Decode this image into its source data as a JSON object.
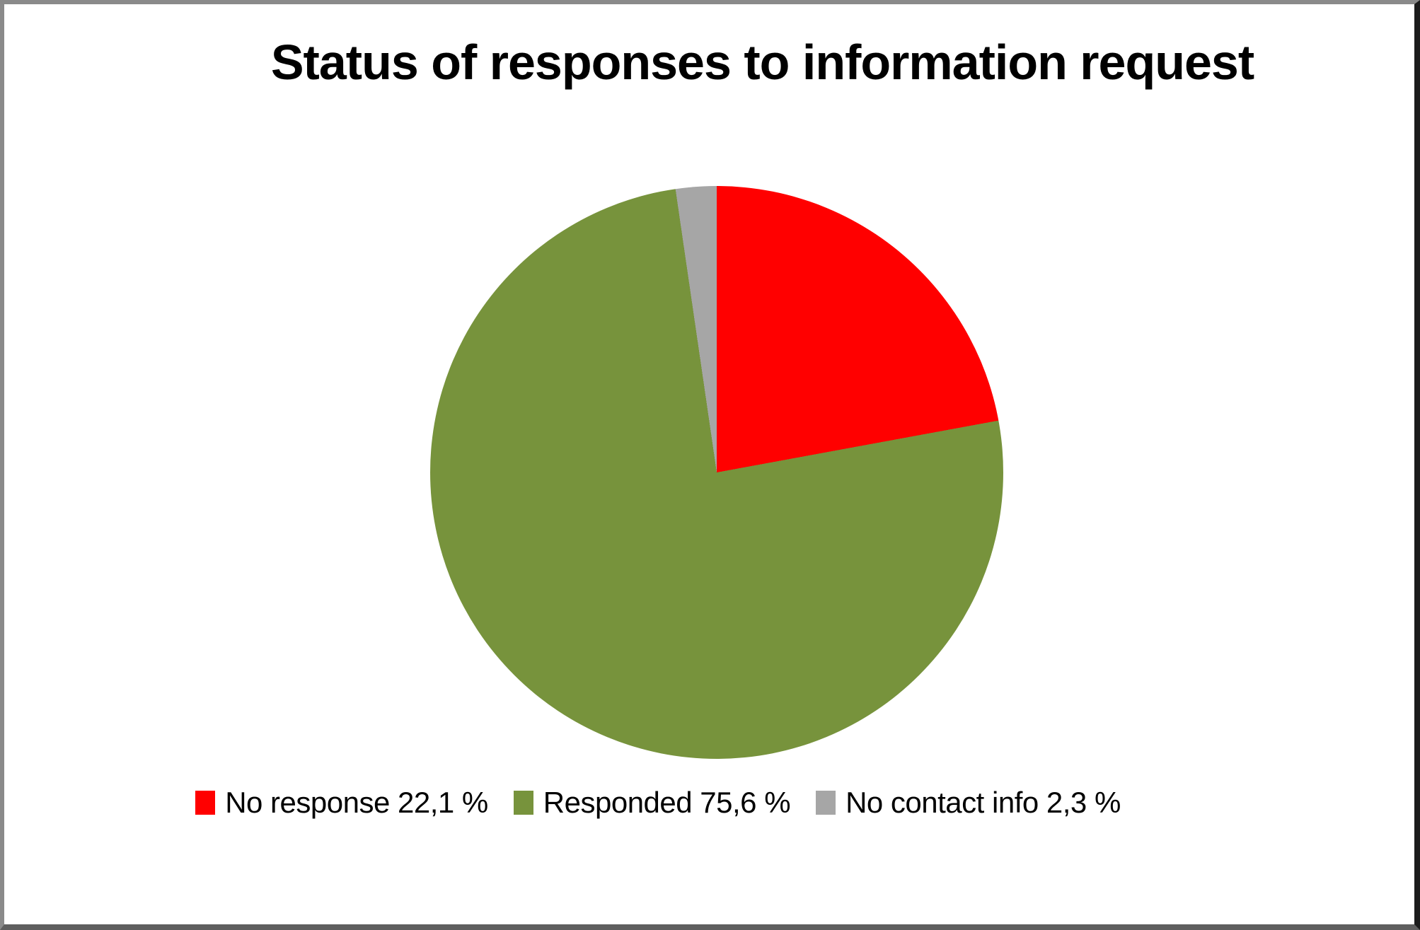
{
  "page": {
    "background_color": "#FFFFFF",
    "frame_border_color": "#1C1C1C"
  },
  "chart_data": {
    "type": "pie",
    "title": "Status of responses to information request",
    "start_angle_deg": 0,
    "direction": "clockwise",
    "legend_position": "bottom",
    "slices": [
      {
        "label": "No response",
        "value_pct": 22.1,
        "display": "No response 22,1 %",
        "color": "#FF0000"
      },
      {
        "label": "Responded",
        "value_pct": 75.6,
        "display": "Responded 75,6 %",
        "color": "#77933C"
      },
      {
        "label": "No contact info",
        "value_pct": 2.3,
        "display": "No contact info 2,3 %",
        "color": "#A6A6A6"
      }
    ]
  }
}
